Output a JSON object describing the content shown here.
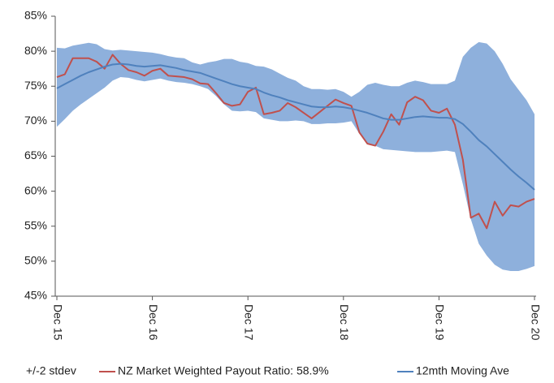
{
  "chart_data": {
    "type": "line",
    "categories": [
      "Dec 15",
      null,
      null,
      null,
      null,
      null,
      null,
      null,
      null,
      null,
      null,
      null,
      "Dec 16",
      null,
      null,
      null,
      null,
      null,
      null,
      null,
      null,
      null,
      null,
      null,
      "Dec 17",
      null,
      null,
      null,
      null,
      null,
      null,
      null,
      null,
      null,
      null,
      null,
      "Dec 18",
      null,
      null,
      null,
      null,
      null,
      null,
      null,
      null,
      null,
      null,
      null,
      "Dec 19",
      null,
      null,
      null,
      null,
      null,
      null,
      null,
      null,
      null,
      null,
      null,
      "Dec 20"
    ],
    "series": [
      {
        "name": "+/-2 stdev",
        "type": "band",
        "color": "#8eb0dc",
        "upper": [
          80.5,
          80.4,
          80.8,
          81.0,
          81.2,
          81.0,
          80.3,
          80.1,
          80.2,
          80.1,
          80.0,
          79.9,
          79.8,
          79.6,
          79.3,
          79.1,
          79.0,
          78.4,
          78.1,
          78.4,
          78.6,
          78.9,
          78.9,
          78.5,
          78.3,
          77.9,
          77.8,
          77.4,
          76.8,
          76.2,
          75.8,
          75.0,
          74.6,
          74.6,
          74.5,
          74.6,
          74.2,
          73.5,
          74.2,
          75.2,
          75.5,
          75.2,
          75.0,
          75.0,
          75.5,
          75.8,
          75.6,
          75.3,
          75.3,
          75.3,
          75.8,
          79.2,
          80.5,
          81.3,
          81.1,
          80.0,
          78.2,
          76.0,
          74.5,
          73.0,
          71.0
        ],
        "lower": [
          69.2,
          70.3,
          71.5,
          72.4,
          73.2,
          74.0,
          74.8,
          75.8,
          76.3,
          76.2,
          75.9,
          75.7,
          75.9,
          76.1,
          75.8,
          75.6,
          75.5,
          75.3,
          75.0,
          74.6,
          73.6,
          72.4,
          71.5,
          71.4,
          71.5,
          71.3,
          70.4,
          70.2,
          70.0,
          70.0,
          70.1,
          70.0,
          69.6,
          69.6,
          69.7,
          69.7,
          69.8,
          70.0,
          68.2,
          66.9,
          66.5,
          66.0,
          65.9,
          65.8,
          65.7,
          65.6,
          65.6,
          65.6,
          65.7,
          65.8,
          65.6,
          61.0,
          56.0,
          52.5,
          50.8,
          49.5,
          48.8,
          48.6,
          48.6,
          48.9,
          49.3
        ]
      },
      {
        "name": "NZ Market Weighted Payout Ratio: 58.9%",
        "color": "#c0504d",
        "values": [
          76.3,
          76.7,
          79.0,
          79.0,
          79.0,
          78.5,
          77.5,
          79.5,
          78.2,
          77.3,
          77.0,
          76.5,
          77.2,
          77.5,
          76.5,
          76.4,
          76.3,
          76.0,
          75.4,
          75.3,
          74.0,
          72.6,
          72.2,
          72.4,
          74.2,
          74.8,
          71.0,
          71.2,
          71.5,
          72.6,
          72.0,
          71.2,
          70.4,
          71.3,
          72.2,
          73.1,
          72.6,
          72.2,
          68.4,
          66.8,
          66.5,
          68.5,
          71.0,
          69.5,
          72.7,
          73.5,
          73.0,
          71.5,
          71.2,
          71.8,
          69.5,
          64.5,
          56.2,
          56.8,
          54.7,
          58.5,
          56.5,
          58.0,
          57.8,
          58.5,
          58.9
        ]
      },
      {
        "name": "12mth Moving Ave",
        "color": "#4f81bd",
        "values": [
          74.7,
          75.3,
          75.9,
          76.5,
          77.0,
          77.4,
          77.8,
          78.1,
          78.2,
          78.1,
          77.9,
          77.8,
          77.9,
          78.0,
          77.8,
          77.6,
          77.3,
          77.1,
          76.9,
          76.5,
          76.1,
          75.7,
          75.3,
          75.0,
          74.8,
          74.6,
          74.1,
          73.7,
          73.4,
          73.0,
          72.7,
          72.4,
          72.1,
          72.0,
          72.0,
          72.1,
          72.0,
          71.8,
          71.5,
          71.2,
          70.8,
          70.4,
          70.2,
          70.2,
          70.4,
          70.6,
          70.7,
          70.6,
          70.5,
          70.5,
          70.3,
          69.6,
          68.5,
          67.3,
          66.4,
          65.3,
          64.2,
          63.1,
          62.1,
          61.2,
          60.2
        ]
      }
    ],
    "ylim": [
      45,
      85
    ],
    "yticks": [
      {
        "value": 45,
        "label": "45%"
      },
      {
        "value": 50,
        "label": "50%"
      },
      {
        "value": 55,
        "label": "55%"
      },
      {
        "value": 60,
        "label": "60%"
      },
      {
        "value": 65,
        "label": "65%"
      },
      {
        "value": 70,
        "label": "70%"
      },
      {
        "value": 75,
        "label": "75%"
      },
      {
        "value": 80,
        "label": "80%"
      },
      {
        "value": 85,
        "label": "85%"
      }
    ],
    "grid": false,
    "legend": "bottom"
  }
}
